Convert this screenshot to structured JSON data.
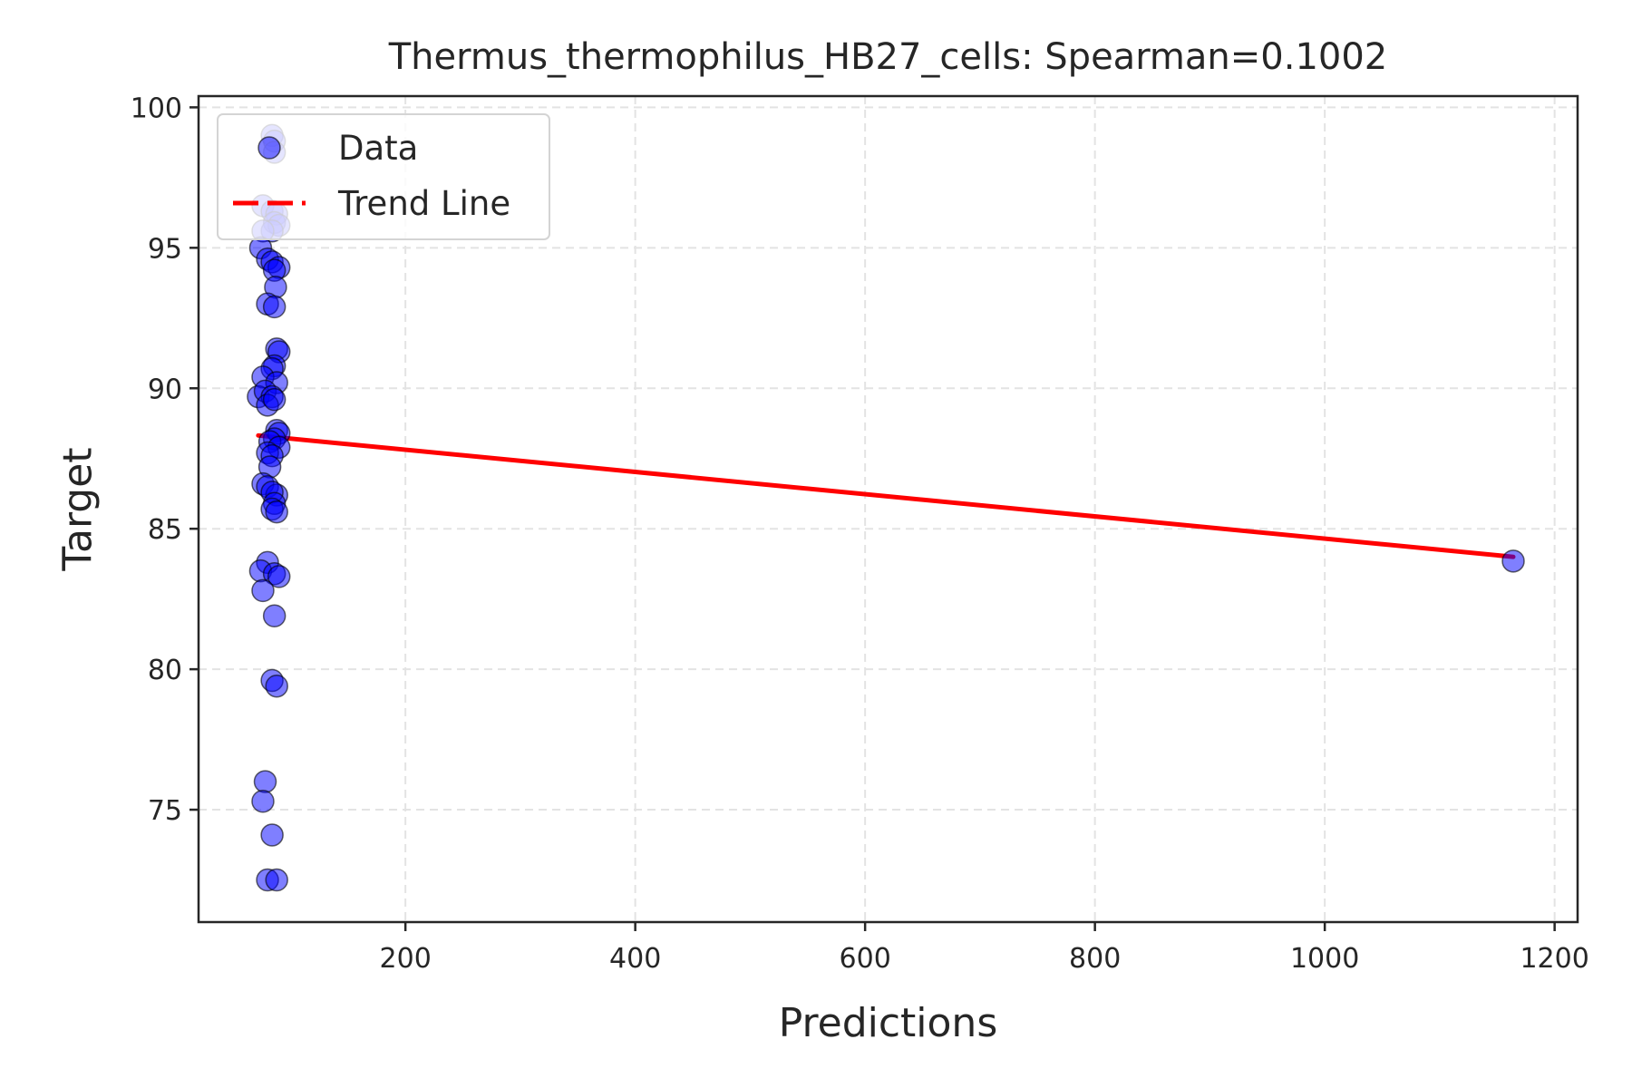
{
  "chart_data": {
    "type": "scatter",
    "title": "Thermus_thermophilus_HB27_cells: Spearman=0.1002",
    "xlabel": "Predictions",
    "ylabel": "Target",
    "xlim": [
      20,
      1220
    ],
    "ylim": [
      71,
      100.4
    ],
    "xticks": [
      200,
      400,
      600,
      800,
      1000,
      1200
    ],
    "yticks": [
      75,
      80,
      85,
      90,
      95,
      100
    ],
    "grid": true,
    "legend_position": "top-left",
    "series": [
      {
        "name": "Data",
        "kind": "scatter",
        "color": "#0000ff",
        "points": [
          [
            84,
            99.0
          ],
          [
            86,
            98.8
          ],
          [
            86,
            98.4
          ],
          [
            76,
            96.5
          ],
          [
            84,
            96.3
          ],
          [
            88,
            96.2
          ],
          [
            86,
            95.9
          ],
          [
            90,
            95.8
          ],
          [
            84,
            95.6
          ],
          [
            76,
            95.6
          ],
          [
            74,
            95.0
          ],
          [
            80,
            94.6
          ],
          [
            84,
            94.5
          ],
          [
            90,
            94.3
          ],
          [
            86,
            94.2
          ],
          [
            87,
            93.6
          ],
          [
            80,
            93.0
          ],
          [
            86,
            92.9
          ],
          [
            88,
            91.4
          ],
          [
            90,
            91.3
          ],
          [
            86,
            90.8
          ],
          [
            84,
            90.7
          ],
          [
            76,
            90.4
          ],
          [
            88,
            90.2
          ],
          [
            72,
            89.7
          ],
          [
            78,
            89.9
          ],
          [
            84,
            89.7
          ],
          [
            80,
            89.4
          ],
          [
            86,
            89.6
          ],
          [
            88,
            88.5
          ],
          [
            90,
            88.4
          ],
          [
            86,
            88.2
          ],
          [
            82,
            88.1
          ],
          [
            90,
            87.9
          ],
          [
            80,
            87.7
          ],
          [
            84,
            87.6
          ],
          [
            82,
            87.2
          ],
          [
            76,
            86.6
          ],
          [
            80,
            86.5
          ],
          [
            88,
            86.2
          ],
          [
            84,
            86.3
          ],
          [
            86,
            85.9
          ],
          [
            84,
            85.7
          ],
          [
            88,
            85.6
          ],
          [
            80,
            83.8
          ],
          [
            74,
            83.5
          ],
          [
            86,
            83.4
          ],
          [
            90,
            83.3
          ],
          [
            76,
            82.8
          ],
          [
            86,
            81.9
          ],
          [
            84,
            79.6
          ],
          [
            88,
            79.4
          ],
          [
            78,
            76.0
          ],
          [
            76,
            75.3
          ],
          [
            84,
            74.1
          ],
          [
            80,
            72.5
          ],
          [
            88,
            72.5
          ],
          [
            1164,
            83.85
          ]
        ]
      },
      {
        "name": "Trend Line",
        "kind": "line",
        "color": "#ff0000",
        "x": [
          72,
          1164
        ],
        "y": [
          88.32,
          84.0
        ]
      }
    ]
  }
}
